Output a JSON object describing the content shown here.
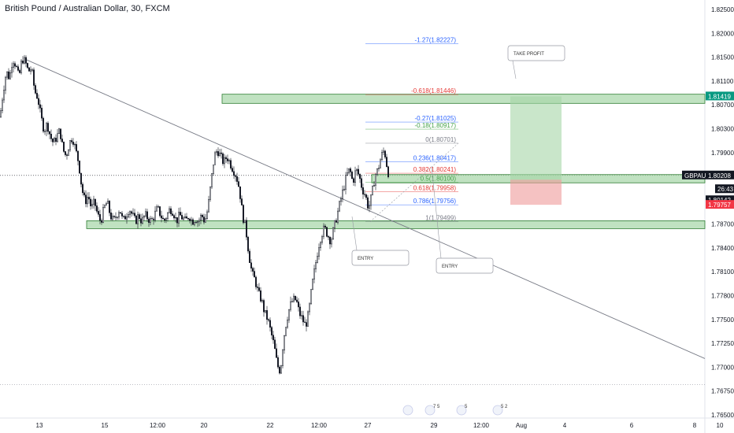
{
  "header": {
    "title": "British Pound / Australian Dollar, 30, FXCM"
  },
  "chart_data": {
    "type": "candlestick",
    "symbol": "GBPAUD",
    "ylim": [
      1.765,
      1.828
    ],
    "y_ticks": [
      "1.82500",
      "1.82000",
      "1.81500",
      "1.81100",
      "1.80700",
      "1.80300",
      "1.79900",
      "1.79500",
      "1.79100",
      "1.78700",
      "1.78400",
      "1.78100",
      "1.77800",
      "1.77500",
      "1.77250",
      "1.77000",
      "1.76750",
      "1.76500"
    ],
    "x_ticks": [
      {
        "label": "13",
        "i": 0
      },
      {
        "label": "15",
        "i": 1
      },
      {
        "label": "12:00",
        "i": 2
      },
      {
        "label": "20",
        "i": 3
      },
      {
        "label": "22",
        "i": 4
      },
      {
        "label": "12:00",
        "i": 5
      },
      {
        "label": "27",
        "i": 6
      },
      {
        "label": "29",
        "i": 7
      },
      {
        "label": "12:00",
        "i": 8
      },
      {
        "label": "Aug",
        "i": 9
      },
      {
        "label": "4",
        "i": 10
      },
      {
        "label": "6",
        "i": 11
      },
      {
        "label": "8",
        "i": 12
      },
      {
        "label": "10",
        "i": 13
      }
    ],
    "price_path": [
      [
        0,
        1.811
      ],
      [
        4,
        1.815
      ],
      [
        8,
        1.818
      ],
      [
        12,
        1.817
      ],
      [
        16,
        1.82
      ],
      [
        20,
        1.819
      ],
      [
        24,
        1.817
      ],
      [
        28,
        1.82
      ],
      [
        32,
        1.8195
      ],
      [
        36,
        1.818
      ],
      [
        40,
        1.8185
      ],
      [
        44,
        1.815
      ],
      [
        48,
        1.814
      ],
      [
        52,
        1.811
      ],
      [
        56,
        1.809
      ],
      [
        60,
        1.81
      ],
      [
        64,
        1.808
      ],
      [
        68,
        1.807
      ],
      [
        72,
        1.808
      ],
      [
        76,
        1.809
      ],
      [
        80,
        1.806
      ],
      [
        84,
        1.805
      ],
      [
        88,
        1.807
      ],
      [
        92,
        1.808
      ],
      [
        96,
        1.806
      ],
      [
        100,
        1.804
      ],
      [
        104,
        1.8
      ],
      [
        108,
        1.798
      ],
      [
        112,
        1.799
      ],
      [
        116,
        1.797
      ],
      [
        120,
        1.798
      ],
      [
        124,
        1.796
      ],
      [
        128,
        1.795
      ],
      [
        132,
        1.797
      ],
      [
        136,
        1.798
      ],
      [
        140,
        1.796
      ],
      [
        144,
        1.795
      ],
      [
        148,
        1.796
      ],
      [
        152,
        1.797
      ],
      [
        156,
        1.795
      ],
      [
        160,
        1.796
      ],
      [
        164,
        1.797
      ],
      [
        168,
        1.796
      ],
      [
        172,
        1.795
      ],
      [
        176,
        1.796
      ],
      [
        180,
        1.795
      ],
      [
        184,
        1.796
      ],
      [
        188,
        1.7955
      ],
      [
        192,
        1.795
      ],
      [
        196,
        1.796
      ],
      [
        200,
        1.797
      ],
      [
        204,
        1.796
      ],
      [
        208,
        1.795
      ],
      [
        212,
        1.796
      ],
      [
        216,
        1.797
      ],
      [
        220,
        1.7965
      ],
      [
        224,
        1.795
      ],
      [
        228,
        1.796
      ],
      [
        232,
        1.7955
      ],
      [
        236,
        1.795
      ],
      [
        240,
        1.796
      ],
      [
        244,
        1.795
      ],
      [
        248,
        1.7955
      ],
      [
        252,
        1.795
      ],
      [
        256,
        1.796
      ],
      [
        260,
        1.795
      ],
      [
        264,
        1.797
      ],
      [
        268,
        1.801
      ],
      [
        272,
        1.805
      ],
      [
        276,
        1.806
      ],
      [
        280,
        1.805
      ],
      [
        284,
        1.804
      ],
      [
        288,
        1.805
      ],
      [
        292,
        1.804
      ],
      [
        296,
        1.803
      ],
      [
        300,
        1.802
      ],
      [
        304,
        1.8
      ],
      [
        308,
        1.796
      ],
      [
        312,
        1.794
      ],
      [
        316,
        1.79
      ],
      [
        320,
        1.787
      ],
      [
        324,
        1.786
      ],
      [
        328,
        1.784
      ],
      [
        332,
        1.783
      ],
      [
        336,
        1.781
      ],
      [
        340,
        1.78
      ],
      [
        344,
        1.778
      ],
      [
        348,
        1.776
      ],
      [
        352,
        1.773
      ],
      [
        356,
        1.772
      ],
      [
        360,
        1.777
      ],
      [
        364,
        1.78
      ],
      [
        368,
        1.782
      ],
      [
        372,
        1.783
      ],
      [
        376,
        1.783
      ],
      [
        380,
        1.781
      ],
      [
        384,
        1.78
      ],
      [
        388,
        1.779
      ],
      [
        392,
        1.781
      ],
      [
        396,
        1.785
      ],
      [
        400,
        1.788
      ],
      [
        404,
        1.791
      ],
      [
        408,
        1.793
      ],
      [
        412,
        1.794
      ],
      [
        416,
        1.793
      ],
      [
        420,
        1.792
      ],
      [
        424,
        1.794
      ],
      [
        428,
        1.796
      ],
      [
        432,
        1.798
      ],
      [
        436,
        1.8
      ],
      [
        440,
        1.802
      ],
      [
        444,
        1.803
      ],
      [
        448,
        1.801
      ],
      [
        452,
        1.803
      ],
      [
        456,
        1.802
      ],
      [
        460,
        1.8
      ],
      [
        464,
        1.799
      ],
      [
        468,
        1.797
      ],
      [
        472,
        1.799
      ],
      [
        476,
        1.802
      ],
      [
        480,
        1.803
      ],
      [
        484,
        1.805
      ],
      [
        488,
        1.806
      ],
      [
        492,
        1.803
      ],
      [
        494,
        1.802
      ]
    ],
    "trendline": {
      "from": [
        30,
        1.82
      ],
      "to": [
        895,
        1.774
      ]
    },
    "zones": [
      {
        "name": "resistance-zone",
        "price_top": 1.8144,
        "price_bottom": 1.8136,
        "x_from": 282,
        "x_to": 895
      },
      {
        "name": "current-zone",
        "price_top": 1.80208,
        "price_bottom": 1.80142,
        "x_from": 472,
        "x_to": 895
      },
      {
        "name": "support-zone",
        "price_top": 1.795,
        "price_bottom": 1.7944,
        "x_from": 110,
        "x_to": 895
      }
    ],
    "position": {
      "x_from": 648,
      "x_to": 713,
      "profit_top": 1.81419,
      "entry": 1.80142,
      "stop": 1.79757
    },
    "fib_levels": [
      {
        "label": "-1.27(1.82227)",
        "price": 1.82227,
        "color": "#2962ff"
      },
      {
        "label": "-0.618(1.81446)",
        "price": 1.81446,
        "color": "#e53935"
      },
      {
        "label": "-0.27(1.81025)",
        "price": 1.81025,
        "color": "#2962ff"
      },
      {
        "label": "-0.18(1.80917)",
        "price": 1.80917,
        "color": "#43a047"
      },
      {
        "label": "0(1.80701)",
        "price": 1.80701,
        "color": "#787b86"
      },
      {
        "label": "0.236(1.80417)",
        "price": 1.80417,
        "color": "#2962ff"
      },
      {
        "label": "0.382(1.80241)",
        "price": 1.80241,
        "color": "#e53935"
      },
      {
        "label": "0.5(1.80100)",
        "price": 1.801,
        "color": "#43a047"
      },
      {
        "label": "0.618(1.79958)",
        "price": 1.79958,
        "color": "#e53935"
      },
      {
        "label": "0.786(1.79756)",
        "price": 1.79756,
        "color": "#2962ff"
      },
      {
        "label": "1(1.79499)",
        "price": 1.79499,
        "color": "#787b86"
      }
    ],
    "price_tags": [
      {
        "label": "1.81419",
        "price": 1.81419,
        "bg": "#089981"
      },
      {
        "label": "GBPAUD",
        "price": 1.80208,
        "bg": "#131722"
      },
      {
        "label": "1.80208",
        "price": 1.80208,
        "bg": "#131722"
      },
      {
        "label": "26:43",
        "price": 1.80142,
        "bg": "#131722",
        "offset": 12
      },
      {
        "label": "1.80142",
        "price": 1.80142,
        "bg": "#131722",
        "offset": 26
      },
      {
        "label": "1.79757",
        "price": 1.79757,
        "bg": "#f23645"
      }
    ],
    "annotations": [
      {
        "text": "TAKE PROFIT"
      },
      {
        "text": "ENTRY"
      },
      {
        "text": "ENTRY"
      }
    ],
    "events": [
      {
        "label": ""
      },
      {
        "label": "7 5"
      },
      {
        "label": "5"
      },
      {
        "label": "5 2"
      }
    ]
  },
  "colors": {
    "zone_fill": "#a5d6a7",
    "zone_stroke": "#2e7d32",
    "profit_fill": "#a5d6a7",
    "loss_fill": "#ef9a9a",
    "candle": "#131722",
    "trendline": "#787b86"
  }
}
